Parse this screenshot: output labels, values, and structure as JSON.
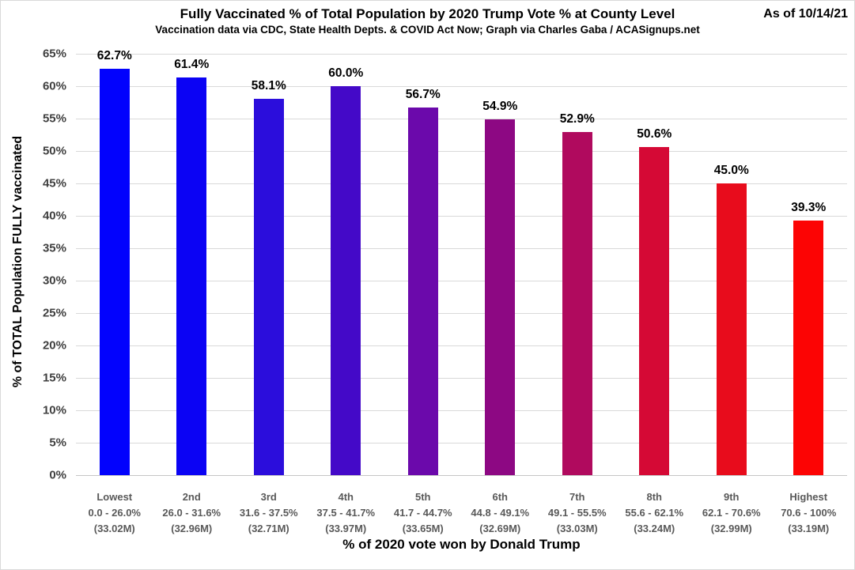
{
  "header": {
    "title": "Fully Vaccinated % of Total Population by 2020 Trump Vote % at County Level",
    "subtitle": "Vaccination data via CDC, State Health Depts. & COVID Act Now; Graph via Charles Gaba / ACASignups.net",
    "as_of": "As of 10/14/21"
  },
  "chart_data": {
    "type": "bar",
    "title": "Fully Vaccinated % of Total Population by 2020 Trump Vote % at County Level",
    "xlabel": "% of 2020 vote won by Donald Trump",
    "ylabel": "% of TOTAL Population FULLY vaccinated",
    "ylim": [
      0,
      65
    ],
    "ytick_step": 5,
    "ytick_labels": [
      "0%",
      "5%",
      "10%",
      "15%",
      "20%",
      "25%",
      "30%",
      "35%",
      "40%",
      "45%",
      "50%",
      "55%",
      "60%",
      "65%"
    ],
    "grid": true,
    "legend_position": "none",
    "categories": [
      {
        "tier": "Lowest",
        "range": "0.0 - 26.0%",
        "population": "(33.02M)"
      },
      {
        "tier": "2nd",
        "range": "26.0 - 31.6%",
        "population": "(32.96M)"
      },
      {
        "tier": "3rd",
        "range": "31.6 - 37.5%",
        "population": "(32.71M)"
      },
      {
        "tier": "4th",
        "range": "37.5 - 41.7%",
        "population": "(33.97M)"
      },
      {
        "tier": "5th",
        "range": "41.7 - 44.7%",
        "population": "(33.65M)"
      },
      {
        "tier": "6th",
        "range": "44.8 - 49.1%",
        "population": "(32.69M)"
      },
      {
        "tier": "7th",
        "range": "49.1 - 55.5%",
        "population": "(33.03M)"
      },
      {
        "tier": "8th",
        "range": "55.6 - 62.1%",
        "population": "(33.24M)"
      },
      {
        "tier": "9th",
        "range": "62.1 - 70.6%",
        "population": "(32.99M)"
      },
      {
        "tier": "Highest",
        "range": "70.6 - 100%",
        "population": "(33.19M)"
      }
    ],
    "values": [
      62.7,
      61.4,
      58.1,
      60.0,
      56.7,
      54.9,
      52.9,
      50.6,
      45.0,
      39.3
    ],
    "value_labels": [
      "62.7%",
      "61.4%",
      "58.1%",
      "60.0%",
      "56.7%",
      "54.9%",
      "52.9%",
      "50.6%",
      "45.0%",
      "39.3%"
    ],
    "bar_colors": [
      "#0202fd",
      "#0b03f4",
      "#2b0ddc",
      "#4409c8",
      "#6b09ab",
      "#8d0883",
      "#b00a5e",
      "#d50935",
      "#e80c1c",
      "#fc0404"
    ]
  },
  "style_colors": {
    "gridline": "#d9d9d9",
    "axis_line": "#c6c6c6",
    "tick_label": "#3f3f3f",
    "category_label": "#595959",
    "value_label": "#000000"
  }
}
